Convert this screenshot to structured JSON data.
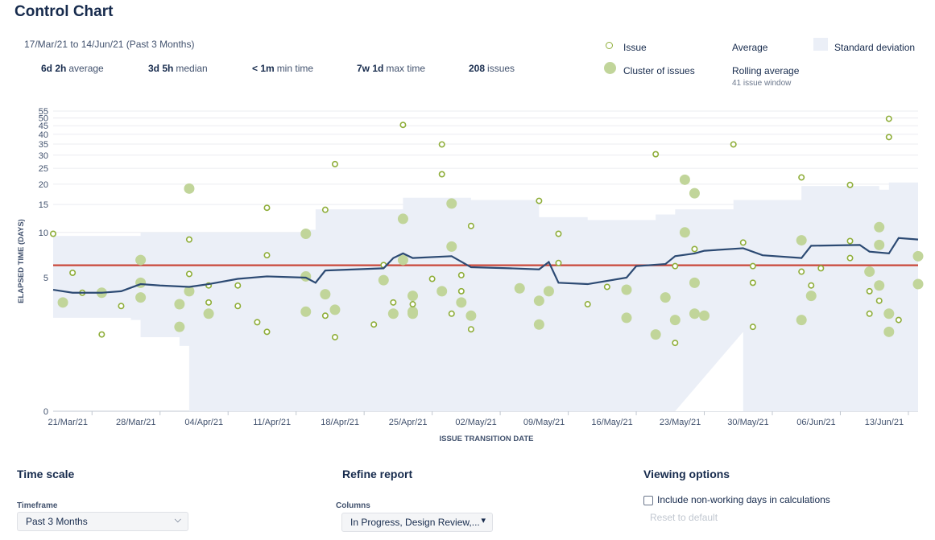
{
  "header": {
    "title": "Control Chart",
    "range": "17/Mar/21 to 14/Jun/21 (Past 3 Months)"
  },
  "stats": [
    {
      "value": "6d 2h",
      "label": "average"
    },
    {
      "value": "3d 5h",
      "label": "median"
    },
    {
      "value": "< 1m",
      "label": "min time"
    },
    {
      "value": "7w 1d",
      "label": "max time"
    },
    {
      "value": "208",
      "label": "issues"
    }
  ],
  "legend": {
    "issue": "Issue",
    "cluster": "Cluster of issues",
    "average": "Average",
    "rolling": "Rolling average",
    "rolling_sub": "41 issue window",
    "stddev": "Standard deviation"
  },
  "colors": {
    "issue": "#8fae3a",
    "cluster": "#c1d59a",
    "average": "#c9473a",
    "rolling": "#2c4a73",
    "stddev": "#ebeff7",
    "grid": "#ebecf0"
  },
  "chart_data": {
    "type": "scatter",
    "xlabel": "ISSUE TRANSITION DATE",
    "ylabel": "ELAPSED TIME (DAYS)",
    "yscale": "log",
    "yticks": [
      "0",
      "5",
      "10",
      "15",
      "20",
      "25",
      "30",
      "35",
      "40",
      "45",
      "50",
      "55"
    ],
    "xticks": [
      "21/Mar/21",
      "28/Mar/21",
      "04/Apr/21",
      "11/Apr/21",
      "18/Apr/21",
      "25/Apr/21",
      "02/May/21",
      "09/May/21",
      "16/May/21",
      "23/May/21",
      "30/May/21",
      "06/Jun/21",
      "13/Jun/21"
    ],
    "xlim": [
      "2021-03-17",
      "2021-06-14"
    ],
    "average": 6.08,
    "issues": [
      {
        "date": "2021-03-17",
        "days": 9.8
      },
      {
        "date": "2021-03-19",
        "days": 5.4
      },
      {
        "date": "2021-03-20",
        "days": 3.9
      },
      {
        "date": "2021-03-22",
        "days": 1.8
      },
      {
        "date": "2021-03-24",
        "days": 3.1
      },
      {
        "date": "2021-03-31",
        "days": 9.0
      },
      {
        "date": "2021-03-31",
        "days": 5.3
      },
      {
        "date": "2021-04-02",
        "days": 4.4
      },
      {
        "date": "2021-04-02",
        "days": 3.3
      },
      {
        "date": "2021-04-05",
        "days": 4.4
      },
      {
        "date": "2021-04-05",
        "days": 3.1
      },
      {
        "date": "2021-04-07",
        "days": 2.3
      },
      {
        "date": "2021-04-08",
        "days": 14.3
      },
      {
        "date": "2021-04-08",
        "days": 7.1
      },
      {
        "date": "2021-04-08",
        "days": 1.9
      },
      {
        "date": "2021-04-14",
        "days": 13.9
      },
      {
        "date": "2021-04-14",
        "days": 2.6
      },
      {
        "date": "2021-04-15",
        "days": 26.5
      },
      {
        "date": "2021-04-15",
        "days": 1.7
      },
      {
        "date": "2021-04-19",
        "days": 2.2
      },
      {
        "date": "2021-04-20",
        "days": 6.1
      },
      {
        "date": "2021-04-21",
        "days": 3.3
      },
      {
        "date": "2021-04-22",
        "days": 45.5
      },
      {
        "date": "2021-04-23",
        "days": 3.2
      },
      {
        "date": "2021-04-25",
        "days": 4.9
      },
      {
        "date": "2021-04-26",
        "days": 34.8
      },
      {
        "date": "2021-04-26",
        "days": 23.0
      },
      {
        "date": "2021-04-27",
        "days": 2.7
      },
      {
        "date": "2021-04-28",
        "days": 5.2
      },
      {
        "date": "2021-04-28",
        "days": 4.0
      },
      {
        "date": "2021-04-29",
        "days": 11.0
      },
      {
        "date": "2021-04-29",
        "days": 2.0
      },
      {
        "date": "2021-05-06",
        "days": 15.8
      },
      {
        "date": "2021-05-08",
        "days": 9.8
      },
      {
        "date": "2021-05-08",
        "days": 6.3
      },
      {
        "date": "2021-05-11",
        "days": 3.2
      },
      {
        "date": "2021-05-13",
        "days": 4.3
      },
      {
        "date": "2021-05-18",
        "days": 30.4
      },
      {
        "date": "2021-05-20",
        "days": 1.5
      },
      {
        "date": "2021-05-20",
        "days": 6.0
      },
      {
        "date": "2021-05-22",
        "days": 7.8
      },
      {
        "date": "2021-05-26",
        "days": 34.8
      },
      {
        "date": "2021-05-27",
        "days": 8.6
      },
      {
        "date": "2021-05-28",
        "days": 6.0
      },
      {
        "date": "2021-05-28",
        "days": 4.6
      },
      {
        "date": "2021-05-28",
        "days": 2.1
      },
      {
        "date": "2021-06-02",
        "days": 22.0
      },
      {
        "date": "2021-06-02",
        "days": 5.5
      },
      {
        "date": "2021-06-03",
        "days": 4.4
      },
      {
        "date": "2021-06-04",
        "days": 5.8
      },
      {
        "date": "2021-06-07",
        "days": 19.8
      },
      {
        "date": "2021-06-07",
        "days": 8.8
      },
      {
        "date": "2021-06-07",
        "days": 6.8
      },
      {
        "date": "2021-06-09",
        "days": 4.0
      },
      {
        "date": "2021-06-09",
        "days": 2.7
      },
      {
        "date": "2021-06-10",
        "days": 3.4
      },
      {
        "date": "2021-06-11",
        "days": 49.5
      },
      {
        "date": "2021-06-11",
        "days": 38.5
      },
      {
        "date": "2021-06-12",
        "days": 2.4
      }
    ],
    "clusters": [
      {
        "date": "2021-03-18",
        "days": 3.3
      },
      {
        "date": "2021-03-22",
        "days": 3.9
      },
      {
        "date": "2021-03-26",
        "days": 6.6
      },
      {
        "date": "2021-03-26",
        "days": 3.6
      },
      {
        "date": "2021-03-26",
        "days": 4.6
      },
      {
        "date": "2021-03-31",
        "days": 18.8
      },
      {
        "date": "2021-03-31",
        "days": 4.0
      },
      {
        "date": "2021-03-30",
        "days": 3.2
      },
      {
        "date": "2021-03-30",
        "days": 2.1
      },
      {
        "date": "2021-04-02",
        "days": 2.7
      },
      {
        "date": "2021-04-12",
        "days": 9.8
      },
      {
        "date": "2021-04-12",
        "days": 5.1
      },
      {
        "date": "2021-04-12",
        "days": 2.8
      },
      {
        "date": "2021-04-14",
        "days": 3.8
      },
      {
        "date": "2021-04-15",
        "days": 2.9
      },
      {
        "date": "2021-04-20",
        "days": 4.8
      },
      {
        "date": "2021-04-21",
        "days": 2.7
      },
      {
        "date": "2021-04-22",
        "days": 12.2
      },
      {
        "date": "2021-04-22",
        "days": 6.6
      },
      {
        "date": "2021-04-23",
        "days": 3.7
      },
      {
        "date": "2021-04-23",
        "days": 2.8
      },
      {
        "date": "2021-04-23",
        "days": 2.7
      },
      {
        "date": "2021-04-26",
        "days": 4.0
      },
      {
        "date": "2021-04-27",
        "days": 15.2
      },
      {
        "date": "2021-04-27",
        "days": 8.1
      },
      {
        "date": "2021-04-28",
        "days": 3.3
      },
      {
        "date": "2021-04-29",
        "days": 2.6
      },
      {
        "date": "2021-05-04",
        "days": 4.2
      },
      {
        "date": "2021-05-06",
        "days": 2.2
      },
      {
        "date": "2021-05-06",
        "days": 3.4
      },
      {
        "date": "2021-05-07",
        "days": 4.0
      },
      {
        "date": "2021-05-15",
        "days": 4.1
      },
      {
        "date": "2021-05-15",
        "days": 2.5
      },
      {
        "date": "2021-05-18",
        "days": 1.8
      },
      {
        "date": "2021-05-19",
        "days": 3.6
      },
      {
        "date": "2021-05-20",
        "days": 2.4
      },
      {
        "date": "2021-05-21",
        "days": 10.0
      },
      {
        "date": "2021-05-21",
        "days": 21.3
      },
      {
        "date": "2021-05-22",
        "days": 17.6
      },
      {
        "date": "2021-05-22",
        "days": 4.6
      },
      {
        "date": "2021-05-22",
        "days": 2.7
      },
      {
        "date": "2021-05-23",
        "days": 2.6
      },
      {
        "date": "2021-06-02",
        "days": 8.9
      },
      {
        "date": "2021-06-02",
        "days": 2.4
      },
      {
        "date": "2021-06-03",
        "days": 3.7
      },
      {
        "date": "2021-06-09",
        "days": 5.5
      },
      {
        "date": "2021-06-10",
        "days": 10.8
      },
      {
        "date": "2021-06-10",
        "days": 8.3
      },
      {
        "date": "2021-06-10",
        "days": 4.4
      },
      {
        "date": "2021-06-11",
        "days": 2.7
      },
      {
        "date": "2021-06-11",
        "days": 1.9
      },
      {
        "date": "2021-06-14",
        "days": 7.0
      },
      {
        "date": "2021-06-14",
        "days": 4.5
      }
    ],
    "rolling_average": [
      {
        "date": "2021-03-17",
        "days": 4.1
      },
      {
        "date": "2021-03-19",
        "days": 3.9
      },
      {
        "date": "2021-03-22",
        "days": 3.9
      },
      {
        "date": "2021-03-24",
        "days": 4.0
      },
      {
        "date": "2021-03-26",
        "days": 4.5
      },
      {
        "date": "2021-03-28",
        "days": 4.4
      },
      {
        "date": "2021-03-31",
        "days": 4.3
      },
      {
        "date": "2021-04-02",
        "days": 4.5
      },
      {
        "date": "2021-04-05",
        "days": 4.9
      },
      {
        "date": "2021-04-08",
        "days": 5.1
      },
      {
        "date": "2021-04-12",
        "days": 5.0
      },
      {
        "date": "2021-04-13",
        "days": 4.6
      },
      {
        "date": "2021-04-14",
        "days": 5.6
      },
      {
        "date": "2021-04-17",
        "days": 5.7
      },
      {
        "date": "2021-04-20",
        "days": 5.8
      },
      {
        "date": "2021-04-21",
        "days": 6.8
      },
      {
        "date": "2021-04-22",
        "days": 7.3
      },
      {
        "date": "2021-04-23",
        "days": 6.8
      },
      {
        "date": "2021-04-27",
        "days": 7.0
      },
      {
        "date": "2021-04-29",
        "days": 5.9
      },
      {
        "date": "2021-05-03",
        "days": 5.8
      },
      {
        "date": "2021-05-06",
        "days": 5.7
      },
      {
        "date": "2021-05-07",
        "days": 6.4
      },
      {
        "date": "2021-05-08",
        "days": 4.6
      },
      {
        "date": "2021-05-11",
        "days": 4.5
      },
      {
        "date": "2021-05-15",
        "days": 5.0
      },
      {
        "date": "2021-05-16",
        "days": 6.0
      },
      {
        "date": "2021-05-19",
        "days": 6.2
      },
      {
        "date": "2021-05-20",
        "days": 7.0
      },
      {
        "date": "2021-05-22",
        "days": 7.3
      },
      {
        "date": "2021-05-23",
        "days": 7.6
      },
      {
        "date": "2021-05-27",
        "days": 7.9
      },
      {
        "date": "2021-05-29",
        "days": 7.1
      },
      {
        "date": "2021-06-02",
        "days": 6.8
      },
      {
        "date": "2021-06-03",
        "days": 8.2
      },
      {
        "date": "2021-06-08",
        "days": 8.3
      },
      {
        "date": "2021-06-09",
        "days": 7.5
      },
      {
        "date": "2021-06-11",
        "days": 7.3
      },
      {
        "date": "2021-06-12",
        "days": 9.2
      },
      {
        "date": "2021-06-14",
        "days": 9.0
      }
    ],
    "std_dev_band": [
      {
        "date": "2021-03-17",
        "low": 2.5,
        "high": 9.5
      },
      {
        "date": "2021-03-25",
        "low": 2.4,
        "high": 9.5
      },
      {
        "date": "2021-03-26",
        "low": 1.7,
        "high": 10.0
      },
      {
        "date": "2021-03-30",
        "low": 1.4,
        "high": 10.0
      },
      {
        "date": "2021-03-31",
        "low": 0.0,
        "high": 10.0
      },
      {
        "date": "2021-04-12",
        "low": 0.0,
        "high": 10.4
      },
      {
        "date": "2021-04-13",
        "low": 0.0,
        "high": 14.0
      },
      {
        "date": "2021-04-21",
        "low": 0.0,
        "high": 14.0
      },
      {
        "date": "2021-04-22",
        "low": 0.0,
        "high": 16.5
      },
      {
        "date": "2021-04-29",
        "low": 0.0,
        "high": 16.0
      },
      {
        "date": "2021-05-06",
        "low": 0.0,
        "high": 12.5
      },
      {
        "date": "2021-05-11",
        "low": 0.0,
        "high": 12.0
      },
      {
        "date": "2021-05-18",
        "low": 0.0,
        "high": 13.0
      },
      {
        "date": "2021-05-20",
        "low": 0.0,
        "high": 14.0
      },
      {
        "date": "2021-05-26",
        "low": 0.0,
        "high": 16.0
      },
      {
        "date": "2021-05-27",
        "low": 0.0,
        "high": 16.0
      },
      {
        "date": "2021-06-01",
        "low": 0.0,
        "high": 16.0
      },
      {
        "date": "2021-06-02",
        "low": 0.0,
        "high": 19.5
      },
      {
        "date": "2021-06-10",
        "low": 0.0,
        "high": 18.5
      },
      {
        "date": "2021-06-11",
        "low": 0.0,
        "high": 20.5
      },
      {
        "date": "2021-06-14",
        "low": 0.0,
        "high": 20.5
      }
    ],
    "std_dev_gap": [
      {
        "date": "2021-05-20",
        "low": 0.0
      },
      {
        "date": "2021-05-27",
        "low": 1.9
      }
    ]
  },
  "controls": {
    "time_scale": {
      "title": "Time scale",
      "timeframe_label": "Timeframe",
      "timeframe_value": "Past 3 Months"
    },
    "refine": {
      "title": "Refine report",
      "columns_label": "Columns",
      "columns_value": "In Progress, Design Review,..."
    },
    "viewing": {
      "title": "Viewing options",
      "nonworking_label": "Include non-working days in calculations",
      "reset": "Reset to default"
    }
  }
}
